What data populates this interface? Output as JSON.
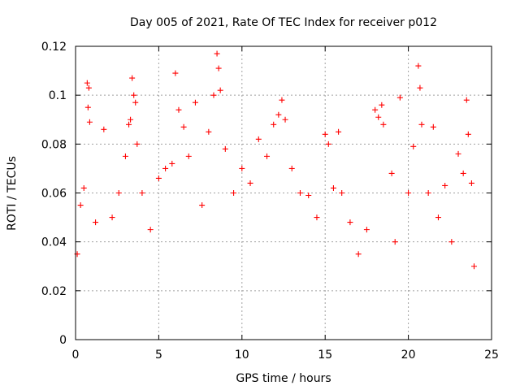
{
  "chart_data": {
    "type": "scatter",
    "title": "Day 005 of 2021, Rate Of TEC Index for receiver p012",
    "xlabel": "GPS time / hours",
    "ylabel": "ROTI / TECUs",
    "xlim": [
      0,
      25
    ],
    "ylim": [
      0,
      0.12
    ],
    "x_ticks": [
      "0",
      "5",
      "10",
      "15",
      "20",
      "25"
    ],
    "y_ticks": [
      "0",
      "0.02",
      "0.04",
      "0.06",
      "0.08",
      "0.1",
      "0.12"
    ],
    "grid": true,
    "legend": "none",
    "marker": "plus",
    "color": "#ff0000",
    "series": [
      {
        "x": [
          0.1,
          0.3,
          0.5,
          0.7,
          0.75,
          0.8,
          0.85,
          1.2,
          1.7,
          2.2,
          2.6,
          3.0,
          3.2,
          3.3,
          3.4,
          3.5,
          3.6,
          3.7,
          4.0,
          4.5,
          5.0,
          5.4,
          5.8,
          6.0,
          6.2,
          6.5,
          6.8,
          7.2,
          7.6,
          8.0,
          8.3,
          8.5,
          8.6,
          8.7,
          9.0,
          9.5,
          10.0,
          10.5,
          11.0,
          11.5,
          11.9,
          12.2,
          12.4,
          12.6,
          13.0,
          13.5,
          14.0,
          14.5,
          15.0,
          15.2,
          15.5,
          15.8,
          16.0,
          16.5,
          17.0,
          17.5,
          18.0,
          18.2,
          18.4,
          18.5,
          19.0,
          19.2,
          19.5,
          20.0,
          20.3,
          20.6,
          20.7,
          20.8,
          21.2,
          21.5,
          21.8,
          22.2,
          22.6,
          23.0,
          23.3,
          23.5,
          23.6,
          23.8,
          23.95
        ],
        "y": [
          0.035,
          0.055,
          0.062,
          0.105,
          0.095,
          0.103,
          0.089,
          0.048,
          0.086,
          0.05,
          0.06,
          0.075,
          0.088,
          0.09,
          0.107,
          0.1,
          0.097,
          0.08,
          0.06,
          0.045,
          0.066,
          0.07,
          0.072,
          0.109,
          0.094,
          0.087,
          0.075,
          0.097,
          0.055,
          0.085,
          0.1,
          0.117,
          0.111,
          0.102,
          0.078,
          0.06,
          0.07,
          0.064,
          0.082,
          0.075,
          0.088,
          0.092,
          0.098,
          0.09,
          0.07,
          0.06,
          0.059,
          0.05,
          0.084,
          0.08,
          0.062,
          0.085,
          0.06,
          0.048,
          0.035,
          0.045,
          0.094,
          0.091,
          0.096,
          0.088,
          0.068,
          0.04,
          0.099,
          0.06,
          0.079,
          0.112,
          0.103,
          0.088,
          0.06,
          0.087,
          0.05,
          0.063,
          0.04,
          0.076,
          0.068,
          0.098,
          0.084,
          0.064,
          0.03
        ]
      }
    ]
  }
}
